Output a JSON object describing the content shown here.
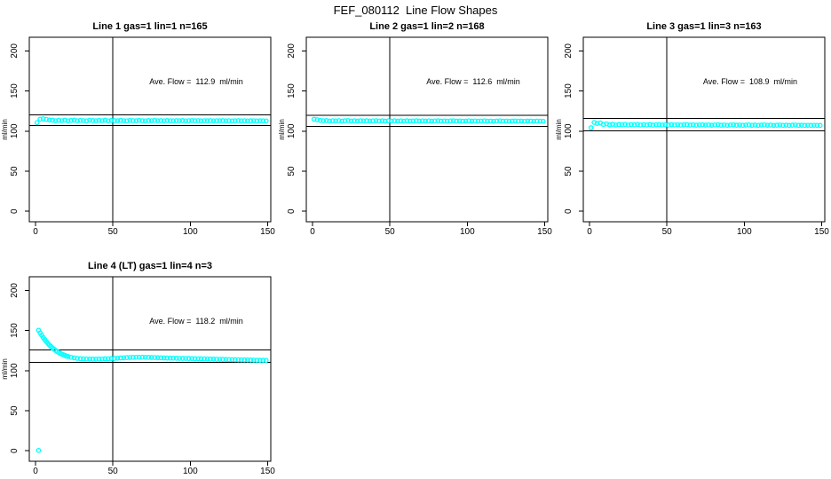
{
  "page_title": "FEF_080112  Line Flow Shapes",
  "colors": {
    "series": "#00ffff",
    "axis": "#000000",
    "background": "#ffffff"
  },
  "chart_data": [
    {
      "type": "scatter",
      "title": "Line 1 gas=1 lin=1 n=165",
      "annotation": "Ave. Flow =  112.9  ml/min",
      "ave_flow_ml_min": 112.9,
      "n": 165,
      "gas": 1,
      "lin": 1,
      "ylabel": "ml/min",
      "xticks": [
        0,
        50,
        100,
        150
      ],
      "yticks": [
        0,
        50,
        100,
        150,
        200
      ],
      "xlim": [
        -4,
        152
      ],
      "ylim": [
        -13,
        217
      ],
      "vline_x": 50,
      "hlines": [
        120,
        107
      ],
      "grid": false,
      "points": [
        [
          1,
          110.6
        ],
        [
          3,
          114.9
        ],
        [
          5,
          115.3
        ],
        [
          7,
          114.6
        ],
        [
          9,
          113.9
        ],
        [
          11,
          113.6
        ],
        [
          13,
          112.9
        ],
        [
          15,
          113.5
        ],
        [
          17,
          113.0
        ],
        [
          19,
          113.7
        ],
        [
          21,
          112.8
        ],
        [
          23,
          113.3
        ],
        [
          25,
          113.6
        ],
        [
          27,
          112.9
        ],
        [
          29,
          113.4
        ],
        [
          31,
          113.1
        ],
        [
          33,
          112.8
        ],
        [
          35,
          113.5
        ],
        [
          37,
          113.2
        ],
        [
          39,
          112.9
        ],
        [
          41,
          113.4
        ],
        [
          43,
          113.0
        ],
        [
          45,
          113.6
        ],
        [
          47,
          112.8
        ],
        [
          49,
          113.3
        ],
        [
          51,
          113.1
        ],
        [
          53,
          112.9
        ],
        [
          55,
          113.4
        ],
        [
          57,
          113.0
        ],
        [
          59,
          112.8
        ],
        [
          61,
          113.3
        ],
        [
          63,
          113.1
        ],
        [
          65,
          112.9
        ],
        [
          67,
          113.4
        ],
        [
          69,
          113.0
        ],
        [
          71,
          112.8
        ],
        [
          73,
          113.2
        ],
        [
          75,
          113.0
        ],
        [
          77,
          113.3
        ],
        [
          79,
          112.9
        ],
        [
          81,
          113.1
        ],
        [
          83,
          112.8
        ],
        [
          85,
          113.2
        ],
        [
          87,
          113.0
        ],
        [
          89,
          112.8
        ],
        [
          91,
          113.1
        ],
        [
          93,
          112.9
        ],
        [
          95,
          113.2
        ],
        [
          97,
          112.8
        ],
        [
          99,
          113.0
        ],
        [
          101,
          113.2
        ],
        [
          103,
          112.9
        ],
        [
          105,
          113.1
        ],
        [
          107,
          112.8
        ],
        [
          109,
          113.0
        ],
        [
          111,
          112.9
        ],
        [
          113,
          113.1
        ],
        [
          115,
          112.8
        ],
        [
          117,
          113.0
        ],
        [
          119,
          112.9
        ],
        [
          121,
          113.1
        ],
        [
          123,
          112.8
        ],
        [
          125,
          113.0
        ],
        [
          127,
          112.7
        ],
        [
          129,
          112.9
        ],
        [
          131,
          113.1
        ],
        [
          133,
          112.8
        ],
        [
          135,
          113.0
        ],
        [
          137,
          112.7
        ],
        [
          139,
          112.9
        ],
        [
          141,
          113.0
        ],
        [
          143,
          112.7
        ],
        [
          145,
          112.9
        ],
        [
          147,
          112.8
        ],
        [
          149,
          112.7
        ]
      ]
    },
    {
      "type": "scatter",
      "title": "Line 2 gas=1 lin=2 n=168",
      "annotation": "Ave. Flow =  112.6  ml/min",
      "ave_flow_ml_min": 112.6,
      "n": 168,
      "gas": 1,
      "lin": 2,
      "ylabel": "ml/min",
      "xticks": [
        0,
        50,
        100,
        150
      ],
      "yticks": [
        0,
        50,
        100,
        150,
        200
      ],
      "xlim": [
        -4,
        152
      ],
      "ylim": [
        -13,
        217
      ],
      "vline_x": 50,
      "hlines": [
        119.5,
        106
      ],
      "grid": false,
      "points": [
        [
          1,
          114.8
        ],
        [
          3,
          114.2
        ],
        [
          5,
          113.4
        ],
        [
          7,
          112.9
        ],
        [
          9,
          113.2
        ],
        [
          11,
          112.6
        ],
        [
          13,
          113.0
        ],
        [
          15,
          112.7
        ],
        [
          17,
          113.1
        ],
        [
          19,
          112.5
        ],
        [
          21,
          112.9
        ],
        [
          23,
          113.2
        ],
        [
          25,
          112.6
        ],
        [
          27,
          112.9
        ],
        [
          29,
          112.5
        ],
        [
          31,
          113.0
        ],
        [
          33,
          112.7
        ],
        [
          35,
          112.9
        ],
        [
          37,
          112.5
        ],
        [
          39,
          112.8
        ],
        [
          41,
          113.0
        ],
        [
          43,
          112.6
        ],
        [
          45,
          112.9
        ],
        [
          47,
          112.5
        ],
        [
          49,
          112.8
        ],
        [
          51,
          112.6
        ],
        [
          53,
          112.9
        ],
        [
          55,
          112.5
        ],
        [
          57,
          112.8
        ],
        [
          59,
          112.6
        ],
        [
          61,
          112.9
        ],
        [
          63,
          112.5
        ],
        [
          65,
          112.7
        ],
        [
          67,
          112.9
        ],
        [
          69,
          112.5
        ],
        [
          71,
          112.8
        ],
        [
          73,
          112.6
        ],
        [
          75,
          112.8
        ],
        [
          77,
          112.5
        ],
        [
          79,
          112.7
        ],
        [
          81,
          112.9
        ],
        [
          83,
          112.5
        ],
        [
          85,
          112.7
        ],
        [
          87,
          112.4
        ],
        [
          89,
          112.7
        ],
        [
          91,
          112.9
        ],
        [
          93,
          112.5
        ],
        [
          95,
          112.7
        ],
        [
          97,
          112.4
        ],
        [
          99,
          112.6
        ],
        [
          101,
          112.8
        ],
        [
          103,
          112.5
        ],
        [
          105,
          112.7
        ],
        [
          107,
          112.4
        ],
        [
          109,
          112.6
        ],
        [
          111,
          112.8
        ],
        [
          113,
          112.4
        ],
        [
          115,
          112.6
        ],
        [
          117,
          112.3
        ],
        [
          119,
          112.6
        ],
        [
          121,
          112.8
        ],
        [
          123,
          112.4
        ],
        [
          125,
          112.6
        ],
        [
          127,
          112.3
        ],
        [
          129,
          112.5
        ],
        [
          131,
          112.7
        ],
        [
          133,
          112.4
        ],
        [
          135,
          112.6
        ],
        [
          137,
          112.3
        ],
        [
          139,
          112.5
        ],
        [
          141,
          112.6
        ],
        [
          143,
          112.3
        ],
        [
          145,
          112.5
        ],
        [
          147,
          112.4
        ],
        [
          149,
          112.3
        ]
      ]
    },
    {
      "type": "scatter",
      "title": "Line 3 gas=1 lin=3 n=163",
      "annotation": "Ave. Flow =  108.9  ml/min",
      "ave_flow_ml_min": 108.9,
      "n": 163,
      "gas": 1,
      "lin": 3,
      "ylabel": "ml/min",
      "xticks": [
        0,
        50,
        100,
        150
      ],
      "yticks": [
        0,
        50,
        100,
        150,
        200
      ],
      "xlim": [
        -4,
        152
      ],
      "ylim": [
        -13,
        217
      ],
      "vline_x": 50,
      "hlines": [
        116,
        100.5
      ],
      "grid": false,
      "points": [
        [
          1,
          104.2
        ],
        [
          3,
          110.8
        ],
        [
          5,
          109.6
        ],
        [
          7,
          110.2
        ],
        [
          9,
          108.4
        ],
        [
          11,
          109.0
        ],
        [
          13,
          107.8
        ],
        [
          15,
          108.5
        ],
        [
          17,
          107.6
        ],
        [
          19,
          108.2
        ],
        [
          21,
          107.9
        ],
        [
          23,
          108.4
        ],
        [
          25,
          107.6
        ],
        [
          27,
          108.1
        ],
        [
          29,
          107.8
        ],
        [
          31,
          108.3
        ],
        [
          33,
          107.6
        ],
        [
          35,
          108.0
        ],
        [
          37,
          107.7
        ],
        [
          39,
          108.2
        ],
        [
          41,
          107.5
        ],
        [
          43,
          107.9
        ],
        [
          45,
          108.1
        ],
        [
          47,
          107.6
        ],
        [
          49,
          107.9
        ],
        [
          51,
          107.5
        ],
        [
          53,
          108.0
        ],
        [
          55,
          107.7
        ],
        [
          57,
          107.9
        ],
        [
          59,
          107.5
        ],
        [
          61,
          107.8
        ],
        [
          63,
          108.0
        ],
        [
          65,
          107.5
        ],
        [
          67,
          107.8
        ],
        [
          69,
          107.4
        ],
        [
          71,
          107.7
        ],
        [
          73,
          107.9
        ],
        [
          75,
          107.5
        ],
        [
          77,
          107.7
        ],
        [
          79,
          107.4
        ],
        [
          81,
          107.7
        ],
        [
          83,
          107.9
        ],
        [
          85,
          107.4
        ],
        [
          87,
          107.6
        ],
        [
          89,
          107.3
        ],
        [
          91,
          107.6
        ],
        [
          93,
          107.8
        ],
        [
          95,
          107.4
        ],
        [
          97,
          107.6
        ],
        [
          99,
          107.3
        ],
        [
          101,
          107.5
        ],
        [
          103,
          107.7
        ],
        [
          105,
          107.3
        ],
        [
          107,
          107.5
        ],
        [
          109,
          107.2
        ],
        [
          111,
          107.5
        ],
        [
          113,
          107.7
        ],
        [
          115,
          107.3
        ],
        [
          117,
          107.5
        ],
        [
          119,
          107.2
        ],
        [
          121,
          107.4
        ],
        [
          123,
          107.6
        ],
        [
          125,
          107.2
        ],
        [
          127,
          107.4
        ],
        [
          129,
          107.1
        ],
        [
          131,
          107.4
        ],
        [
          133,
          107.6
        ],
        [
          135,
          107.2
        ],
        [
          137,
          107.4
        ],
        [
          139,
          107.1
        ],
        [
          141,
          107.3
        ],
        [
          143,
          107.1
        ],
        [
          145,
          107.3
        ],
        [
          147,
          107.2
        ],
        [
          149,
          107.1
        ]
      ]
    },
    {
      "type": "scatter",
      "title": "Line 4 (LT) gas=1 lin=4 n=3",
      "annotation": "Ave. Flow =  118.2  ml/min",
      "ave_flow_ml_min": 118.2,
      "n": 3,
      "gas": 1,
      "lin": 4,
      "ylabel": "ml/min",
      "xticks": [
        0,
        50,
        100,
        150
      ],
      "yticks": [
        0,
        50,
        100,
        150,
        200
      ],
      "xlim": [
        -4,
        152
      ],
      "ylim": [
        -13,
        217
      ],
      "vline_x": 50,
      "hlines": [
        126,
        110.5
      ],
      "grid": false,
      "points": [
        [
          2,
          0.5
        ],
        [
          2,
          150.3
        ],
        [
          3,
          147.0
        ],
        [
          4,
          144.0
        ],
        [
          5,
          141.2
        ],
        [
          6,
          138.6
        ],
        [
          7,
          136.2
        ],
        [
          8,
          133.9
        ],
        [
          9,
          131.8
        ],
        [
          10,
          129.9
        ],
        [
          11,
          128.2
        ],
        [
          12,
          126.6
        ],
        [
          13,
          125.1
        ],
        [
          14,
          123.8
        ],
        [
          15,
          122.6
        ],
        [
          16,
          121.5
        ],
        [
          17,
          120.5
        ],
        [
          18,
          119.7
        ],
        [
          19,
          118.9
        ],
        [
          20,
          118.2
        ],
        [
          21,
          117.6
        ],
        [
          23,
          116.6
        ],
        [
          25,
          115.9
        ],
        [
          27,
          115.3
        ],
        [
          29,
          114.9
        ],
        [
          31,
          114.6
        ],
        [
          33,
          114.5
        ],
        [
          35,
          114.4
        ],
        [
          37,
          114.3
        ],
        [
          39,
          114.3
        ],
        [
          41,
          114.4
        ],
        [
          43,
          114.5
        ],
        [
          45,
          114.7
        ],
        [
          47,
          114.8
        ],
        [
          49,
          115.0
        ],
        [
          51,
          115.3
        ],
        [
          53,
          115.5
        ],
        [
          55,
          115.8
        ],
        [
          57,
          116.0
        ],
        [
          59,
          116.2
        ],
        [
          61,
          116.4
        ],
        [
          63,
          116.5
        ],
        [
          65,
          116.6
        ],
        [
          67,
          116.7
        ],
        [
          69,
          116.7
        ],
        [
          71,
          116.6
        ],
        [
          73,
          116.5
        ],
        [
          75,
          116.4
        ],
        [
          77,
          116.3
        ],
        [
          79,
          116.1
        ],
        [
          81,
          116.0
        ],
        [
          83,
          115.8
        ],
        [
          85,
          115.7
        ],
        [
          87,
          115.6
        ],
        [
          89,
          115.5
        ],
        [
          91,
          115.4
        ],
        [
          93,
          115.3
        ],
        [
          95,
          115.3
        ],
        [
          97,
          115.2
        ],
        [
          99,
          115.1
        ],
        [
          101,
          115.0
        ],
        [
          103,
          114.9
        ],
        [
          105,
          114.8
        ],
        [
          107,
          114.7
        ],
        [
          109,
          114.6
        ],
        [
          111,
          114.5
        ],
        [
          113,
          114.4
        ],
        [
          115,
          114.3
        ],
        [
          117,
          114.2
        ],
        [
          119,
          114.1
        ],
        [
          121,
          114.0
        ],
        [
          123,
          113.9
        ],
        [
          125,
          113.8
        ],
        [
          127,
          113.7
        ],
        [
          129,
          113.6
        ],
        [
          131,
          113.5
        ],
        [
          133,
          113.4
        ],
        [
          135,
          113.3
        ],
        [
          137,
          113.3
        ],
        [
          139,
          113.2
        ],
        [
          141,
          113.1
        ],
        [
          143,
          113.0
        ],
        [
          145,
          112.9
        ],
        [
          147,
          112.9
        ],
        [
          149,
          112.8
        ]
      ]
    }
  ]
}
